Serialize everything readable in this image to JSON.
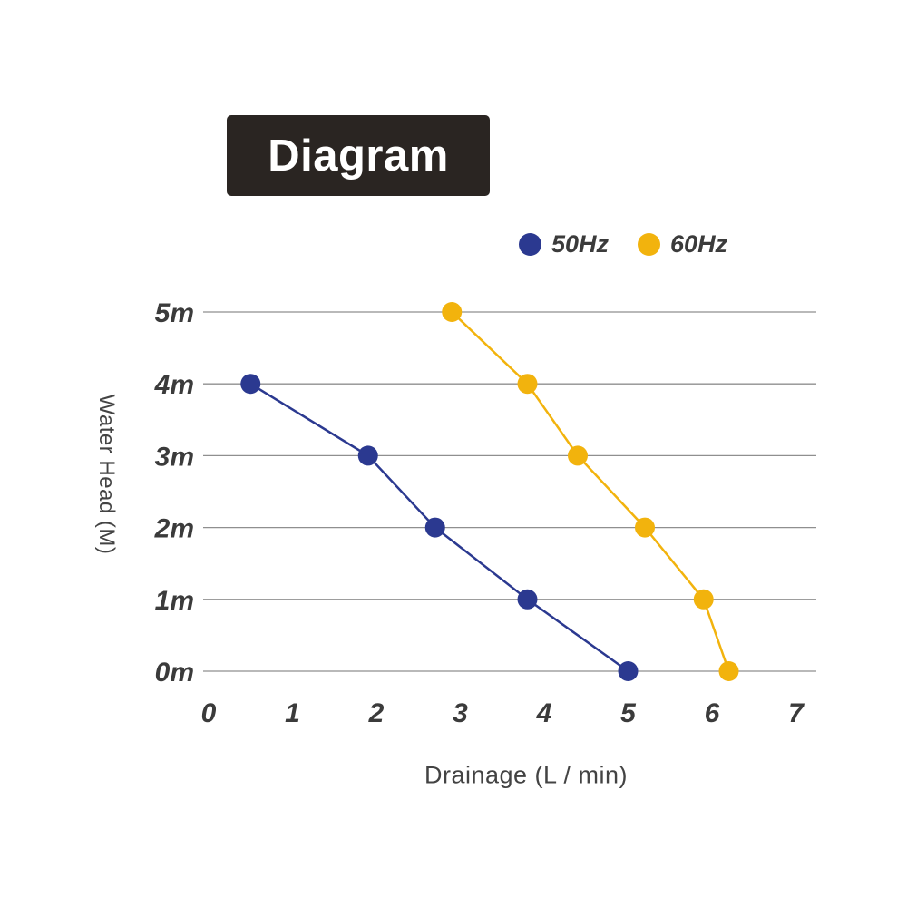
{
  "title": "Diagram",
  "legend": [
    {
      "label": "50Hz",
      "color": "#2b3990"
    },
    {
      "label": "60Hz",
      "color": "#f2b30d"
    }
  ],
  "chart_data": {
    "type": "line",
    "title": "Diagram",
    "xlabel": "Drainage (L / min)",
    "ylabel": "Water Head (M)",
    "x_ticks": [
      0,
      1,
      2,
      3,
      4,
      5,
      6,
      7
    ],
    "y_ticks": [
      "0m",
      "1m",
      "2m",
      "3m",
      "4m",
      "5m"
    ],
    "xlim": [
      0,
      7
    ],
    "ylim": [
      0,
      5
    ],
    "grid": "horizontal-only",
    "legend_position": "top-right",
    "marker": "filled-circle",
    "series": [
      {
        "name": "50Hz",
        "color": "#2b3990",
        "points": [
          [
            0.5,
            4
          ],
          [
            1.9,
            3
          ],
          [
            2.7,
            2
          ],
          [
            3.8,
            1
          ],
          [
            5.0,
            0
          ]
        ]
      },
      {
        "name": "60Hz",
        "color": "#f2b30d",
        "points": [
          [
            2.9,
            5
          ],
          [
            3.8,
            4
          ],
          [
            4.4,
            3
          ],
          [
            5.2,
            2
          ],
          [
            5.9,
            1
          ],
          [
            6.2,
            0
          ]
        ]
      }
    ]
  }
}
